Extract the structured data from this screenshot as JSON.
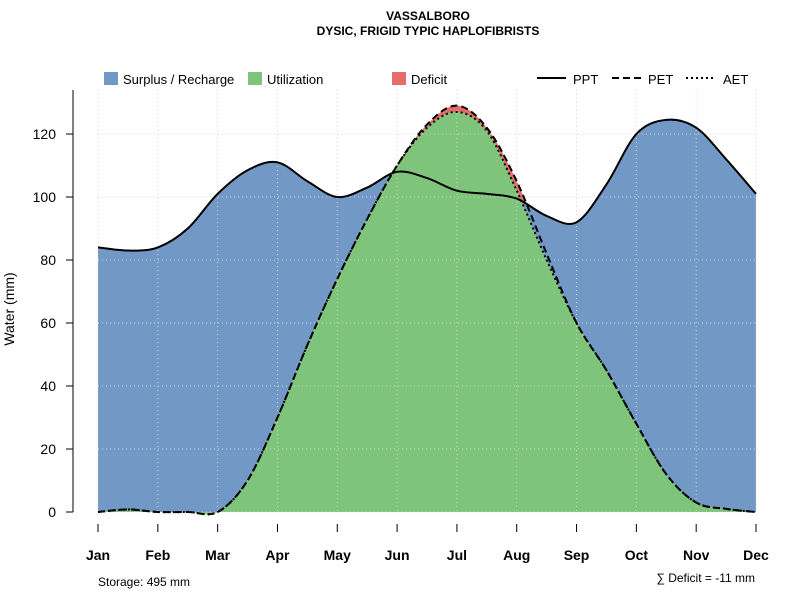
{
  "chart_data": {
    "type": "area",
    "title": "VASSALBORO",
    "subtitle": "DYSIC, FRIGID TYPIC HAPLOFIBRISTS",
    "ylabel": "Water (mm)",
    "xlabel": "",
    "ylim": [
      0,
      130
    ],
    "yticks": [
      0,
      20,
      40,
      60,
      80,
      100,
      120
    ],
    "categories": [
      "Jan",
      "Feb",
      "Mar",
      "Apr",
      "May",
      "Jun",
      "Jul",
      "Aug",
      "Sep",
      "Oct",
      "Nov",
      "Dec"
    ],
    "grid": true,
    "series": [
      {
        "name": "PPT",
        "linestyle": "solid",
        "x": [
          1,
          1.5,
          2,
          2.5,
          3,
          3.5,
          4,
          4.5,
          5,
          5.5,
          6,
          6.5,
          7,
          7.5,
          8,
          8.5,
          9,
          9.5,
          10,
          10.5,
          11,
          11.5,
          12
        ],
        "values": [
          84,
          83,
          84,
          90,
          101,
          108.5,
          111,
          105,
          100,
          103,
          108,
          106,
          102,
          101,
          99.5,
          94,
          92,
          104,
          120,
          124.5,
          122,
          112,
          101
        ]
      },
      {
        "name": "PET",
        "linestyle": "dashed",
        "x": [
          1,
          1.5,
          2,
          2.5,
          3,
          3.5,
          4,
          4.5,
          5,
          5.5,
          6,
          6.5,
          7,
          7.5,
          8,
          8.5,
          9,
          9.5,
          10,
          10.5,
          11,
          11.5,
          12
        ],
        "values": [
          0,
          0.8,
          0,
          0,
          0,
          10,
          30,
          53,
          74,
          93,
          110,
          123,
          129,
          122,
          105,
          82,
          60,
          45,
          28,
          12,
          3,
          1,
          0
        ]
      },
      {
        "name": "AET",
        "linestyle": "dotted",
        "x": [
          1,
          1.5,
          2,
          2.5,
          3,
          3.5,
          4,
          4.5,
          5,
          5.5,
          6,
          6.5,
          7,
          7.5,
          8,
          8.5,
          9,
          9.5,
          10,
          10.5,
          11,
          11.5,
          12
        ],
        "values": [
          0,
          0.8,
          0,
          0,
          0,
          10,
          30,
          53,
          74,
          93,
          110,
          122,
          127,
          121,
          102,
          80,
          60,
          45,
          28,
          12,
          3,
          1,
          0
        ]
      }
    ],
    "areas": [
      {
        "name": "Surplus / Recharge",
        "color": "#7299c6"
      },
      {
        "name": "Utilization",
        "color": "#7fc47b"
      },
      {
        "name": "Deficit",
        "color": "#e66b6b"
      }
    ],
    "footer_left": "Storage: 495 mm",
    "footer_right": "∑ Deficit = -11 mm"
  }
}
